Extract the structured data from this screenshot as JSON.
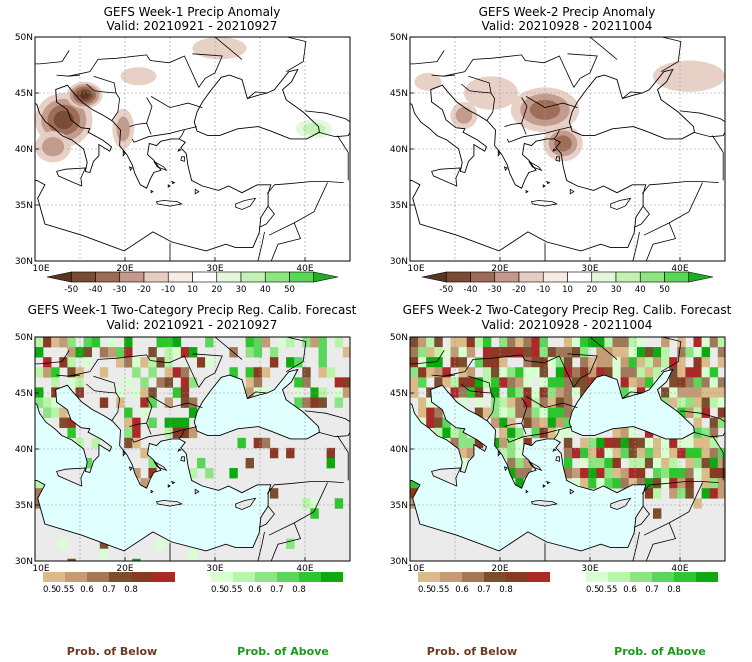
{
  "chart_data": [
    {
      "type": "heatmap",
      "title": "GEFS Week-1 Precip Anomaly",
      "subtitle": "Valid: 20210921 - 20210927",
      "xlim": [
        10,
        45
      ],
      "ylim": [
        30,
        50
      ],
      "xticks": [
        "10E",
        "20E",
        "30E",
        "40E"
      ],
      "yticks": [
        "30N",
        "35N",
        "40N",
        "45N",
        "50N"
      ],
      "colorbar": {
        "labels": [
          "-50",
          "-40",
          "-30",
          "-20",
          "-10",
          "10",
          "20",
          "30",
          "40",
          "50"
        ],
        "colors": [
          "#5a3622",
          "#7a4b35",
          "#9c6b55",
          "#c2998a",
          "#e6cdc3",
          "#f7ebe6",
          "#ffffff",
          "#e4f7dd",
          "#c4f0b6",
          "#8fe582",
          "#5ad65a",
          "#1fb01f"
        ]
      },
      "blobs": [
        {
          "lon": 13.2,
          "lat": 42.6,
          "rx": 3.2,
          "ry": 2.4,
          "value": -40
        },
        {
          "lon": 15.5,
          "lat": 44.8,
          "rx": 2.0,
          "ry": 1.2,
          "value": -50
        },
        {
          "lon": 12.0,
          "lat": 40.2,
          "rx": 2.0,
          "ry": 1.4,
          "value": -20
        },
        {
          "lon": 19.8,
          "lat": 41.8,
          "rx": 1.2,
          "ry": 1.8,
          "value": -20
        },
        {
          "lon": 21.5,
          "lat": 46.5,
          "rx": 2.0,
          "ry": 0.8,
          "value": -10
        },
        {
          "lon": 30.5,
          "lat": 49.0,
          "rx": 3.0,
          "ry": 1.0,
          "value": -10
        },
        {
          "lon": 33.0,
          "lat": 43.0,
          "rx": 4.5,
          "ry": 1.8,
          "value": 10
        },
        {
          "lon": 41.0,
          "lat": 41.8,
          "rx": 2.8,
          "ry": 1.2,
          "value": 30
        },
        {
          "lon": 37.0,
          "lat": 40.2,
          "rx": 3.5,
          "ry": 1.2,
          "value": 10
        }
      ]
    },
    {
      "type": "heatmap",
      "title": "GEFS Week-2 Precip Anomaly",
      "subtitle": "Valid: 20210928 - 20211004",
      "xlim": [
        10,
        45
      ],
      "ylim": [
        30,
        50
      ],
      "xticks": [
        "10E",
        "20E",
        "30E",
        "40E"
      ],
      "yticks": [
        "30N",
        "35N",
        "40N",
        "45N",
        "50N"
      ],
      "colorbar": {
        "labels": [
          "-50",
          "-40",
          "-30",
          "-20",
          "-10",
          "10",
          "20",
          "30",
          "40",
          "50"
        ],
        "colors": [
          "#5a3622",
          "#7a4b35",
          "#9c6b55",
          "#c2998a",
          "#e6cdc3",
          "#f7ebe6",
          "#ffffff",
          "#e4f7dd",
          "#c4f0b6",
          "#8fe582",
          "#5ad65a",
          "#1fb01f"
        ]
      },
      "blobs": [
        {
          "lon": 25.0,
          "lat": 43.5,
          "rx": 3.8,
          "ry": 2.0,
          "value": -30
        },
        {
          "lon": 27.0,
          "lat": 40.5,
          "rx": 2.2,
          "ry": 1.6,
          "value": -30
        },
        {
          "lon": 19.0,
          "lat": 45.0,
          "rx": 3.0,
          "ry": 1.5,
          "value": -10
        },
        {
          "lon": 16.0,
          "lat": 43.0,
          "rx": 1.5,
          "ry": 1.2,
          "value": -20
        },
        {
          "lon": 41.0,
          "lat": 46.5,
          "rx": 4.0,
          "ry": 1.4,
          "value": -10
        },
        {
          "lon": 12.0,
          "lat": 46.0,
          "rx": 1.5,
          "ry": 0.8,
          "value": -10
        },
        {
          "lon": 33.0,
          "lat": 48.5,
          "rx": 2.0,
          "ry": 0.7,
          "value": 10
        }
      ]
    },
    {
      "type": "heatmap",
      "title": "GEFS Week-1 Two-Category Precip Reg. Calib. Forecast",
      "subtitle": "Valid: 20210921 - 20210927",
      "xlim": [
        10,
        45
      ],
      "ylim": [
        30,
        50
      ],
      "xticks": [
        "10E",
        "20E",
        "30E",
        "40E"
      ],
      "yticks": [
        "30N",
        "35N",
        "40N",
        "45N",
        "50N"
      ],
      "below_colorbar": {
        "labels": [
          "0.5",
          "0.55",
          "0.6",
          "0.7",
          "0.8"
        ],
        "colors": [
          "#dcbb8a",
          "#c39c76",
          "#a0785a",
          "#7a4e2e",
          "#8a3a24",
          "#aa2a2a"
        ]
      },
      "above_colorbar": {
        "labels": [
          "0.5",
          "0.55",
          "0.6",
          "0.7",
          "0.8"
        ],
        "colors": [
          "#d7ffd1",
          "#b8f5a8",
          "#8ce582",
          "#5ad65a",
          "#2ec52e",
          "#10a810"
        ]
      },
      "prob_above_fraction": 0.55,
      "cell_deg": 0.9,
      "land_cover_fraction": 0.55,
      "seed": 11
    },
    {
      "type": "heatmap",
      "title": "GEFS Week-2 Two-Category Precip Reg. Calib. Forecast",
      "subtitle": "Valid: 20210928 - 20211004",
      "xlim": [
        10,
        45
      ],
      "ylim": [
        30,
        50
      ],
      "xticks": [
        "10E",
        "20E",
        "30E",
        "40E"
      ],
      "yticks": [
        "30N",
        "35N",
        "40N",
        "45N",
        "50N"
      ],
      "below_colorbar": {
        "labels": [
          "0.5",
          "0.55",
          "0.6",
          "0.7",
          "0.8"
        ],
        "colors": [
          "#dcbb8a",
          "#c39c76",
          "#a0785a",
          "#7a4e2e",
          "#8a3a24",
          "#aa2a2a"
        ]
      },
      "above_colorbar": {
        "labels": [
          "0.5",
          "0.55",
          "0.6",
          "0.7",
          "0.8"
        ],
        "colors": [
          "#d7ffd1",
          "#b8f5a8",
          "#8ce582",
          "#5ad65a",
          "#2ec52e",
          "#10a810"
        ]
      },
      "prob_above_fraction": 0.45,
      "cell_deg": 0.9,
      "land_cover_fraction": 0.9,
      "seed": 29
    }
  ],
  "footer": {
    "below_label": "Prob. of Below",
    "above_label": "Prob. of Above",
    "below_color": "#6b3a1f",
    "above_color": "#1a9a1a"
  },
  "colors": {
    "sea": "#e0ffff",
    "nodata_land": "#ebebeb",
    "coast": "#000000",
    "grid": "#999999"
  }
}
